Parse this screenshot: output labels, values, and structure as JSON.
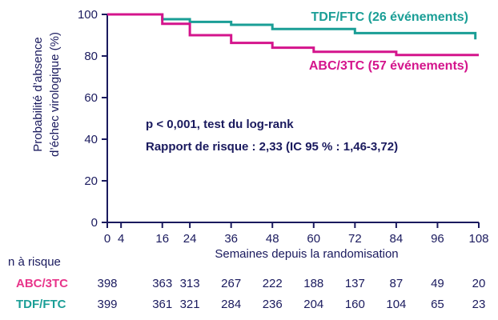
{
  "chart_data": {
    "type": "line",
    "xlabel": "Semaines depuis la randomisation",
    "ylabel_line1": "Probabilité d’absence",
    "ylabel_line2": "d’échec virologique  (%)",
    "x_ticks": [
      0,
      4,
      16,
      24,
      36,
      48,
      60,
      72,
      84,
      96,
      108
    ],
    "y_ticks": [
      0,
      20,
      40,
      60,
      80,
      100
    ],
    "xlim": [
      0,
      108
    ],
    "ylim": [
      0,
      100
    ],
    "grid": false,
    "series": [
      {
        "name": "TDF/FTC (26 événements)",
        "color": "#1a9e96",
        "x": [
          0,
          16,
          16,
          24,
          24,
          36,
          36,
          48,
          48,
          72,
          72,
          107,
          107
        ],
        "y": [
          100,
          100,
          97.7,
          97.7,
          96.4,
          96.4,
          95,
          95,
          93,
          93,
          91,
          91,
          88
        ]
      },
      {
        "name": "ABC/3TC (57 événements)",
        "color": "#d4148c",
        "x": [
          0,
          16,
          16,
          24,
          24,
          36,
          36,
          48,
          48,
          60,
          60,
          84,
          84,
          108
        ],
        "y": [
          100,
          100,
          95.5,
          95.5,
          90,
          90,
          86.3,
          86.3,
          84,
          84,
          82,
          82,
          80.5,
          80.5
        ]
      }
    ],
    "annotations": [
      "p < 0,001, test du log-rank",
      "Rapport de risque : 2,33 (IC 95 % : 1,46-3,72)"
    ],
    "risk_table": {
      "title": "n à risque",
      "weeks": [
        0,
        16,
        24,
        36,
        48,
        60,
        72,
        84,
        96,
        108
      ],
      "rows": [
        {
          "label": "ABC/3TC",
          "color": "#e8348a",
          "values": [
            398,
            363,
            313,
            267,
            222,
            188,
            137,
            87,
            49,
            20
          ]
        },
        {
          "label": "TDF/FTC",
          "color": "#1a9e96",
          "values": [
            399,
            361,
            321,
            284,
            236,
            204,
            160,
            104,
            65,
            23
          ]
        }
      ]
    }
  },
  "colors": {
    "axis": "#1a1a5e",
    "text": "#1a1a5e"
  }
}
